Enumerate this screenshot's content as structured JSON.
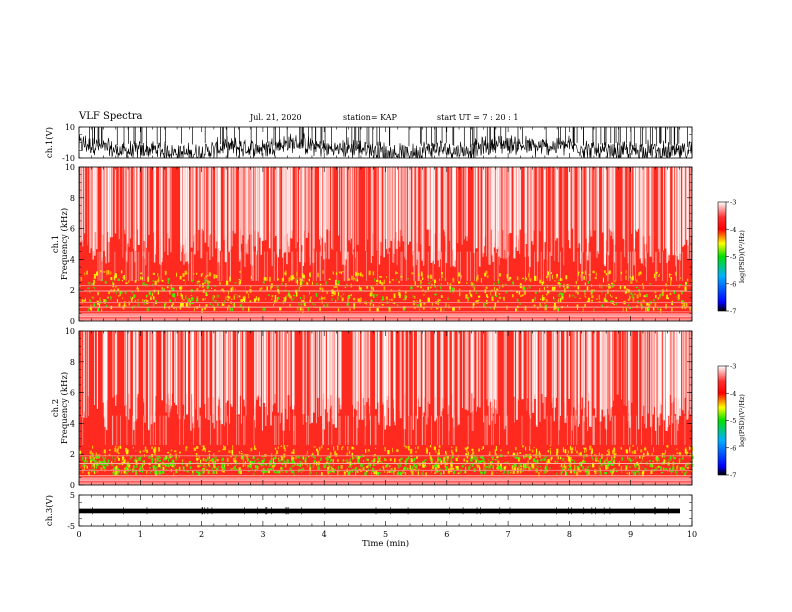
{
  "header": {
    "title": "VLF Spectra",
    "date": "Jul. 21, 2020",
    "station": "station= KAP",
    "start": "start  UT =   7 : 20 : 1"
  },
  "chart_data": [
    {
      "type": "line",
      "id": "ch1-voltage",
      "ylabel": "ch.1(V)",
      "ylim": [
        -10,
        10
      ],
      "yticks": [
        -10,
        10
      ],
      "xlim": [
        0,
        10
      ],
      "description_of_signal": "noisy voltage trace"
    },
    {
      "type": "heatmap",
      "id": "ch1-spectrogram",
      "ylabel": "ch.1\nFrequency (kHz)",
      "ylabel_lines": [
        "ch.1",
        "Frequency (kHz)"
      ],
      "ylim": [
        0,
        10
      ],
      "yticks": [
        0,
        2,
        4,
        6,
        8,
        10
      ],
      "xlim": [
        0,
        10
      ],
      "colorbar": {
        "label": "log(PSD)(V²/Hz)",
        "range": [
          -7,
          -3
        ],
        "ticks": [
          -7,
          -6,
          -5,
          -4,
          -3
        ],
        "colors": [
          "#000000",
          "#0000ff",
          "#00c000",
          "#ffff00",
          "#ff0000",
          "#ffffff"
        ]
      }
    },
    {
      "type": "heatmap",
      "id": "ch2-spectrogram",
      "ylabel_lines": [
        "ch.2",
        "Frequency (kHz)"
      ],
      "ylim": [
        0,
        10
      ],
      "yticks": [
        0,
        2,
        4,
        6,
        8,
        10
      ],
      "xlim": [
        0,
        10
      ],
      "colorbar": {
        "label": "log(PSD)(V²/Hz)",
        "range": [
          -7,
          -3
        ],
        "ticks": [
          -7,
          -6,
          -5,
          -4,
          -3
        ]
      }
    },
    {
      "type": "line",
      "id": "ch3-voltage",
      "ylabel": "ch.3(V)",
      "ylim": [
        -5,
        5
      ],
      "yticks": [
        -5,
        5
      ],
      "xlim": [
        0,
        10
      ],
      "xlabel": "Time (min)",
      "xticks": [
        0,
        1,
        2,
        3,
        4,
        5,
        6,
        7,
        8,
        9,
        10
      ]
    }
  ],
  "colors": {
    "background": "#ffffff",
    "trace": "#000000",
    "spec_high": "#ff0000",
    "spec_mid": "#ffff00",
    "spec_low": "#00ff00"
  }
}
